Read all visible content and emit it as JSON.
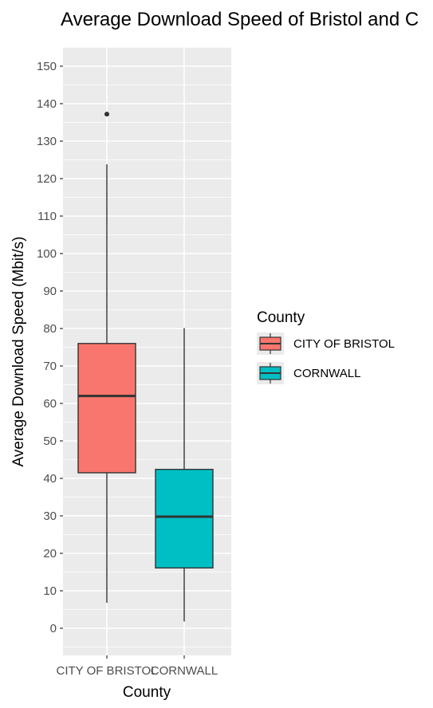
{
  "chart_data": {
    "type": "boxplot",
    "title": "Average Download Speed of Bristol and C",
    "xlabel": "County",
    "ylabel": "Average Download Speed (Mbit/s)",
    "ylim": [
      -6,
      156
    ],
    "y_ticks": [
      0,
      10,
      20,
      30,
      40,
      50,
      60,
      70,
      80,
      90,
      100,
      110,
      120,
      130,
      140,
      150
    ],
    "categories": [
      "CITY OF BRISTOL",
      "CORNWALL"
    ],
    "series": [
      {
        "name": "CITY OF BRISTOL",
        "color": "#F8766D",
        "whisker_low": 6.8,
        "q1": 41.5,
        "median": 62.0,
        "q3": 76.0,
        "whisker_high": 123.8,
        "outliers": [
          137.2
        ]
      },
      {
        "name": "CORNWALL",
        "color": "#00BFC4",
        "whisker_low": 1.8,
        "q1": 16.1,
        "median": 29.8,
        "q3": 42.4,
        "whisker_high": 80.1,
        "outliers": []
      }
    ],
    "legend": {
      "title": "County",
      "position": "right"
    },
    "grid": true,
    "panel_background": "#EBEBEB",
    "grid_color": "#FFFFFF"
  }
}
